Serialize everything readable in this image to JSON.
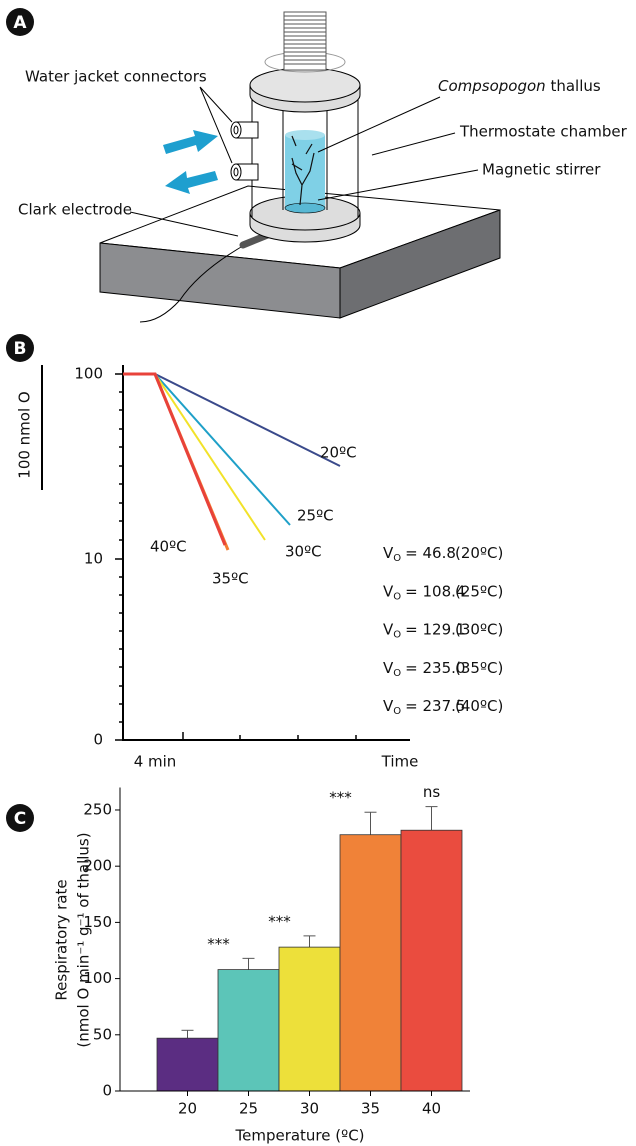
{
  "panel_a": {
    "letter": "A",
    "labels": {
      "connectors": "Water jacket connectors",
      "thallus_genus": "Compsopogon",
      "thallus": "thallus",
      "chamber": "Thermostate chamber",
      "stirrer": "Magnetic stirrer",
      "electrode": "Clark electrode"
    }
  },
  "panel_b": {
    "letter": "B",
    "y_labels": [
      "100",
      "10",
      "0"
    ],
    "scale_bar_label": "100 nmol O",
    "x_labels": [
      "4 min",
      "Time"
    ],
    "traces": [
      {
        "label": "20ºC",
        "color": "#3a4a8b"
      },
      {
        "label": "25ºC",
        "color": "#1fa0c8"
      },
      {
        "label": "30ºC",
        "color": "#f2e229"
      },
      {
        "label": "35ºC",
        "color": "#f47c30"
      },
      {
        "label": "40ºC",
        "color": "#e8423a"
      }
    ],
    "rates": [
      {
        "symbol": "V",
        "subscript": "O",
        "text": "= 46.8",
        "temperature": "(20ºC)"
      },
      {
        "symbol": "V",
        "subscript": "O",
        "text": "= 108.4",
        "temperature": "(25ºC)"
      },
      {
        "symbol": "V",
        "subscript": "O",
        "text": "= 129.1",
        "temperature": "(30ºC)"
      },
      {
        "symbol": "V",
        "subscript": "O",
        "text": "= 235.0",
        "temperature": "(35ºC)"
      },
      {
        "symbol": "V",
        "subscript": "O",
        "text": "= 237.5",
        "temperature": "(40ºC)"
      }
    ]
  },
  "chart_data": {
    "type": "bar",
    "letter": "C",
    "categories": [
      "20",
      "25",
      "30",
      "35",
      "40"
    ],
    "values": [
      47,
      108,
      128,
      228,
      232
    ],
    "errors": [
      7,
      10,
      10,
      20,
      21
    ],
    "colors": [
      "#5b2d82",
      "#5cc5b8",
      "#ede03a",
      "#f08238",
      "#ea4c3f"
    ],
    "significance": [
      null,
      "***",
      "***",
      "***",
      "ns"
    ],
    "y_label": [
      "Respiratory rate",
      "(nmol O min⁻¹ g⁻¹ of thallus)"
    ],
    "x_label": "Temperature (ºC)",
    "ylim": [
      0,
      270
    ],
    "yticks": [
      0,
      50,
      100,
      150,
      200,
      250
    ]
  }
}
